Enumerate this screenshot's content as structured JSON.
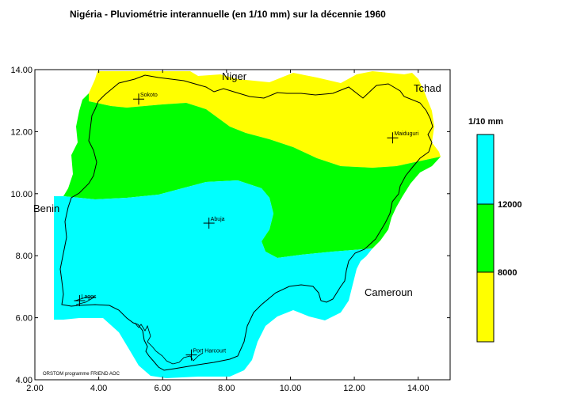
{
  "title": "Nigéria - Pluviométrie interannuelle (en 1/10 mm) sur la décennie 1960",
  "axes": {
    "x_ticks": [
      "2.00",
      "4.00",
      "6.00",
      "8.00",
      "10.00",
      "12.00",
      "14.00"
    ],
    "y_ticks": [
      "14.00",
      "12.00",
      "10.00",
      "8.00",
      "6.00",
      "4.00"
    ],
    "x_range": [
      2,
      15
    ],
    "y_range": [
      4,
      14
    ]
  },
  "countries": [
    "Niger",
    "Tchad",
    "Benin",
    "Cameroun"
  ],
  "cities": [
    {
      "name": "Sokoto",
      "lon": 5.25,
      "lat": 13.05
    },
    {
      "name": "Maiduguri",
      "lon": 13.2,
      "lat": 11.8
    },
    {
      "name": "Abuja",
      "lon": 7.45,
      "lat": 9.05
    },
    {
      "name": "Lagos",
      "lon": 3.4,
      "lat": 6.55
    },
    {
      "name": "Port Harcourt",
      "lon": 6.9,
      "lat": 4.8
    }
  ],
  "credit": "ORSTOM programme FRIEND AOC",
  "legend": {
    "title": "1/10 mm",
    "classes": [
      {
        "range": "> 12000",
        "color": "#00ffff"
      },
      {
        "range": "8000 - 12000",
        "color": "#00ff00"
      },
      {
        "range": "< 8000",
        "color": "#ffff00"
      }
    ],
    "labels": [
      "12000",
      "8000"
    ]
  },
  "colors": {
    "wet": "#00ffff",
    "medium": "#00ff00",
    "dry": "#ffff00"
  }
}
